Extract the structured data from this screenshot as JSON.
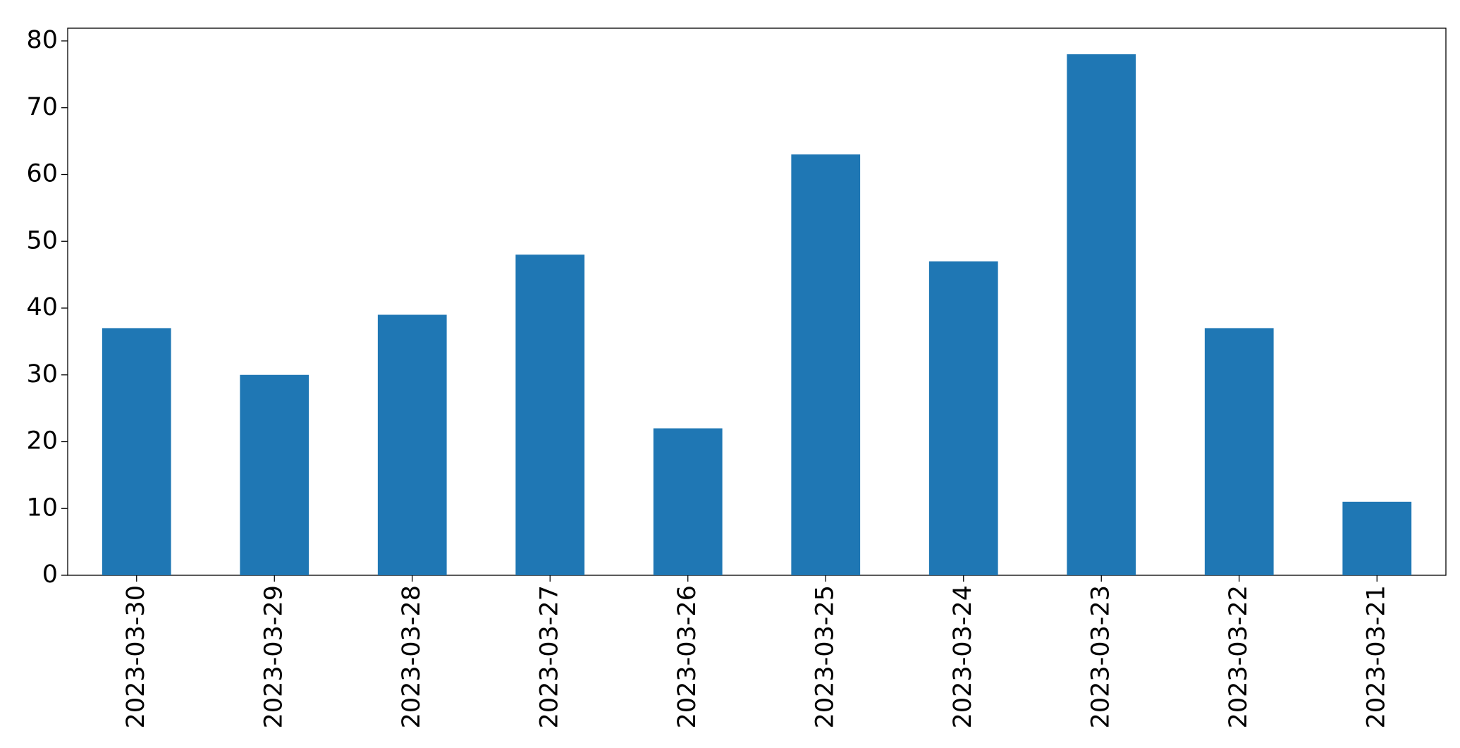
{
  "chart_data": {
    "type": "bar",
    "categories": [
      "2023-03-30",
      "2023-03-29",
      "2023-03-28",
      "2023-03-27",
      "2023-03-26",
      "2023-03-25",
      "2023-03-24",
      "2023-03-23",
      "2023-03-22",
      "2023-03-21"
    ],
    "values": [
      37,
      30,
      39,
      48,
      22,
      63,
      47,
      78,
      37,
      11
    ],
    "color": "#1f77b4",
    "ylim": [
      0,
      81.9
    ],
    "yticks": [
      0,
      10,
      20,
      30,
      40,
      50,
      60,
      70,
      80
    ],
    "grid": false
  }
}
